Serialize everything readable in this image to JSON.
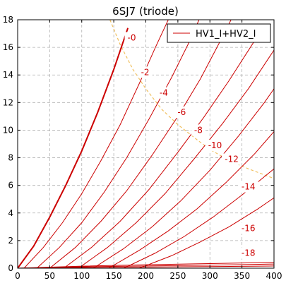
{
  "chart_data": {
    "type": "line",
    "title": "6SJ7 (triode)",
    "xlabel": "",
    "ylabel": "",
    "xlim": [
      0,
      400
    ],
    "ylim": [
      0,
      18
    ],
    "xticks": [
      "0",
      "50",
      "100",
      "150",
      "200",
      "250",
      "300",
      "350",
      "400"
    ],
    "yticks": [
      "0",
      "2",
      "4",
      "6",
      "8",
      "10",
      "12",
      "14",
      "16",
      "18"
    ],
    "grid": true,
    "legend": {
      "position": "top-right",
      "entries": [
        "HV1_I+HV2_I"
      ]
    },
    "series_color": "#cc0000",
    "dissipation_color": "#f0c060",
    "dissipation_limit": [
      [
        144,
        18
      ],
      [
        160,
        16.2
      ],
      [
        180,
        14.4
      ],
      [
        200,
        13.0
      ],
      [
        225,
        11.5
      ],
      [
        250,
        10.4
      ],
      [
        280,
        9.3
      ],
      [
        300,
        8.6
      ],
      [
        330,
        7.8
      ],
      [
        360,
        7.2
      ],
      [
        400,
        6.5
      ]
    ],
    "series": [
      {
        "name": "HV1_I+HV2_I",
        "grid_voltage": "-0",
        "label_at": [
          178,
          16.7
        ],
        "points": [
          [
            0,
            0
          ],
          [
            25,
            1.6
          ],
          [
            50,
            3.7
          ],
          [
            75,
            6.0
          ],
          [
            100,
            8.5
          ],
          [
            125,
            11.3
          ],
          [
            150,
            14.4
          ],
          [
            172,
            17.4
          ]
        ]
      },
      {
        "grid_voltage": "-2",
        "label_at": [
          199,
          14.2
        ],
        "points": [
          [
            10,
            0
          ],
          [
            40,
            1.5
          ],
          [
            70,
            3.3
          ],
          [
            100,
            5.4
          ],
          [
            130,
            7.8
          ],
          [
            160,
            10.4
          ],
          [
            190,
            13.4
          ],
          [
            215,
            16.0
          ],
          [
            235,
            18
          ]
        ]
      },
      {
        "grid_voltage": "-4",
        "label_at": [
          228,
          12.7
        ],
        "points": [
          [
            30,
            0
          ],
          [
            65,
            1.5
          ],
          [
            100,
            3.3
          ],
          [
            135,
            5.5
          ],
          [
            170,
            8.0
          ],
          [
            205,
            10.8
          ],
          [
            240,
            13.8
          ],
          [
            270,
            16.6
          ],
          [
            283,
            18
          ]
        ]
      },
      {
        "grid_voltage": "-6",
        "label_at": [
          256,
          11.3
        ],
        "points": [
          [
            50,
            0
          ],
          [
            90,
            1.5
          ],
          [
            130,
            3.4
          ],
          [
            170,
            5.6
          ],
          [
            210,
            8.2
          ],
          [
            250,
            11.0
          ],
          [
            285,
            13.7
          ],
          [
            320,
            16.8
          ],
          [
            333,
            18
          ]
        ]
      },
      {
        "grid_voltage": "-8",
        "label_at": [
          282,
          10.0
        ],
        "points": [
          [
            72,
            0
          ],
          [
            115,
            1.5
          ],
          [
            160,
            3.4
          ],
          [
            205,
            5.7
          ],
          [
            250,
            8.4
          ],
          [
            290,
            10.9
          ],
          [
            330,
            13.6
          ],
          [
            370,
            16.5
          ]
        ]
      },
      {
        "grid_voltage": "-10",
        "label_at": [
          308,
          8.9
        ],
        "points": [
          [
            95,
            0
          ],
          [
            140,
            1.5
          ],
          [
            185,
            3.3
          ],
          [
            230,
            5.4
          ],
          [
            275,
            7.9
          ],
          [
            320,
            10.5
          ],
          [
            360,
            13.0
          ],
          [
            400,
            15.8
          ]
        ]
      },
      {
        "grid_voltage": "-12",
        "label_at": [
          334,
          7.9
        ],
        "points": [
          [
            118,
            0
          ],
          [
            165,
            1.4
          ],
          [
            210,
            3.0
          ],
          [
            255,
            4.9
          ],
          [
            300,
            7.1
          ],
          [
            345,
            9.6
          ],
          [
            385,
            12.0
          ],
          [
            400,
            13.0
          ]
        ]
      },
      {
        "grid_voltage": "-14",
        "label_at": [
          360,
          5.9
        ],
        "points": [
          [
            142,
            0
          ],
          [
            190,
            1.3
          ],
          [
            235,
            2.7
          ],
          [
            280,
            4.3
          ],
          [
            325,
            6.2
          ],
          [
            370,
            8.3
          ],
          [
            400,
            9.9
          ]
        ]
      },
      {
        "grid_voltage": "-16",
        "label_at": [
          360,
          2.9
        ],
        "points": [
          [
            166,
            0
          ],
          [
            215,
            1.1
          ],
          [
            260,
            2.3
          ],
          [
            305,
            3.7
          ],
          [
            350,
            5.3
          ],
          [
            400,
            7.2
          ]
        ]
      },
      {
        "grid_voltage": "-18",
        "label_at": [
          360,
          1.1
        ],
        "points": [
          [
            190,
            0
          ],
          [
            240,
            0.9
          ],
          [
            285,
            1.9
          ],
          [
            330,
            3.0
          ],
          [
            375,
            4.3
          ],
          [
            400,
            5.1
          ]
        ]
      }
    ],
    "lower_cluster": [
      {
        "points": [
          [
            0,
            0
          ],
          [
            100,
            0.05
          ],
          [
            200,
            0.08
          ],
          [
            300,
            0.12
          ],
          [
            400,
            0.16
          ]
        ]
      },
      {
        "points": [
          [
            0,
            0
          ],
          [
            100,
            0.1
          ],
          [
            200,
            0.16
          ],
          [
            300,
            0.22
          ],
          [
            400,
            0.3
          ]
        ]
      },
      {
        "points": [
          [
            0,
            0
          ],
          [
            100,
            0.15
          ],
          [
            200,
            0.25
          ],
          [
            300,
            0.33
          ],
          [
            400,
            0.42
          ]
        ]
      }
    ]
  }
}
